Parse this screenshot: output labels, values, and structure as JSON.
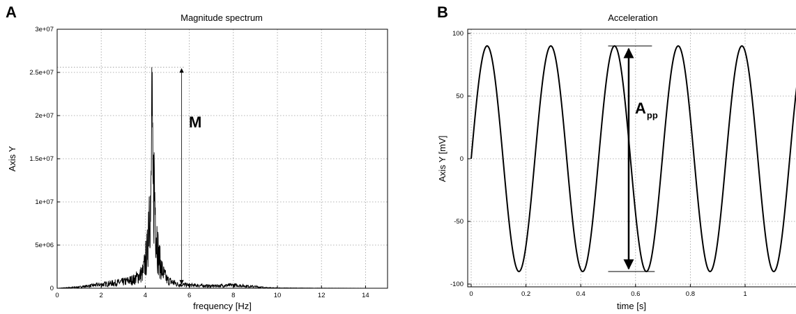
{
  "panels": {
    "a": {
      "letter": "A",
      "annotation": "M"
    },
    "b": {
      "letter": "B",
      "annotation_main": "A",
      "annotation_sub": "pp"
    }
  },
  "chart_data": [
    {
      "type": "line",
      "title": "Magnitude spectrum",
      "xlabel": "frequency [Hz]",
      "ylabel": "Axis Y",
      "xlim": [
        0,
        15
      ],
      "ylim": [
        0,
        30000000
      ],
      "xticks": [
        0,
        2,
        4,
        6,
        8,
        10,
        12,
        14
      ],
      "yticks": [
        0,
        5000000,
        10000000,
        15000000,
        20000000,
        25000000,
        30000000
      ],
      "ytick_labels": [
        "0",
        "5e+06",
        "1e+07",
        "1.5e+07",
        "2e+07",
        "2.5e+07",
        "3e+07"
      ],
      "grid": true,
      "x": [
        0,
        1,
        2,
        3,
        3.5,
        3.9,
        4.1,
        4.2,
        4.25,
        4.3,
        4.35,
        4.4,
        4.5,
        4.6,
        4.8,
        5.0,
        5.5,
        6,
        7,
        8,
        9,
        9.5,
        10,
        12,
        15
      ],
      "values": [
        0,
        200000,
        600000,
        1000000,
        1400000,
        2500000,
        6000000,
        17500000,
        10000000,
        25600000,
        14000000,
        17000000,
        10000000,
        5000000,
        2500000,
        1300000,
        600000,
        500000,
        350000,
        500000,
        250000,
        100000,
        50000,
        20000,
        0
      ],
      "peak_value": 25600000
    },
    {
      "type": "line",
      "title": "Acceleration",
      "xlabel": "time [s]",
      "ylabel": "Axis Y [mV]",
      "xlim": [
        0,
        1.2
      ],
      "ylim": [
        -100,
        100
      ],
      "xticks": [
        0,
        0.2,
        0.4,
        0.6,
        0.8,
        1
      ],
      "yticks": [
        -100,
        -50,
        0,
        50,
        100
      ],
      "grid": true,
      "amplitude": 90,
      "frequency_hz": 4.3,
      "peak_to_peak": 180
    }
  ]
}
